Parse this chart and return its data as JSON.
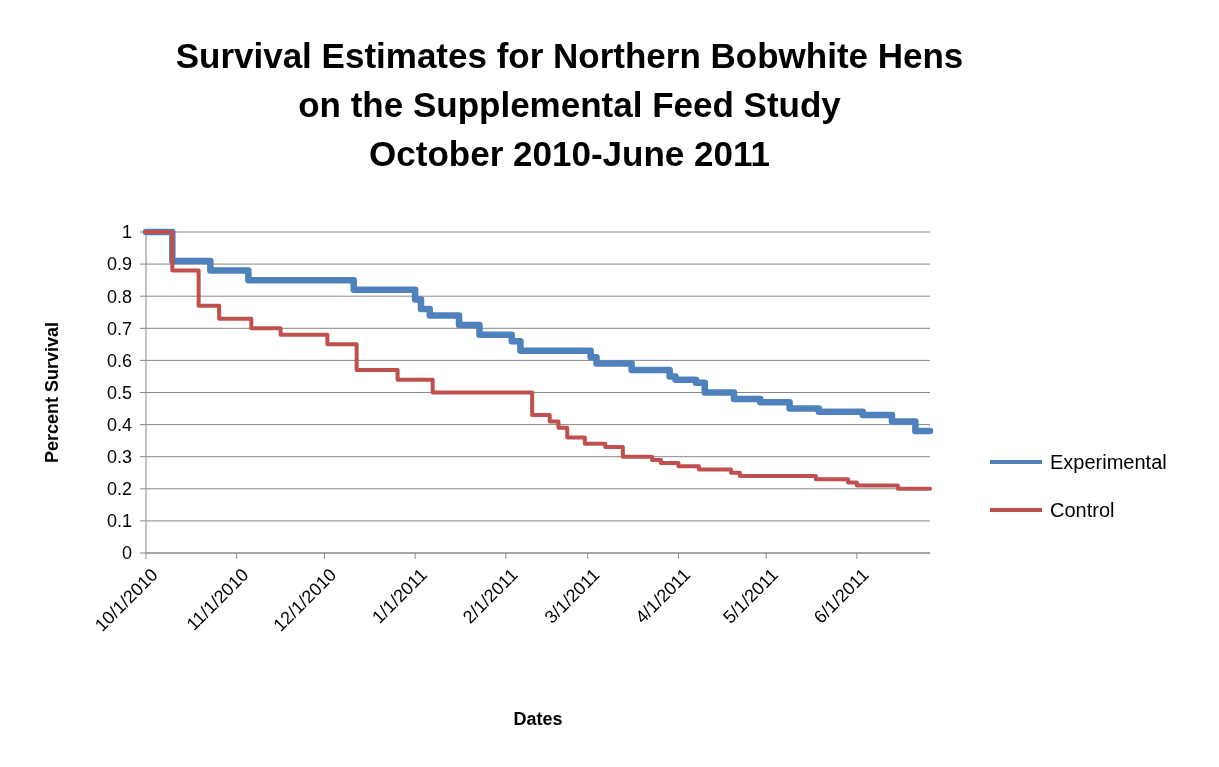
{
  "chart_data": {
    "type": "step",
    "title": "Survival Estimates for Northern Bobwhite Hens\non the Supplemental Feed Study",
    "subtitle": "October 2010-June 2011",
    "xlabel": "Dates",
    "ylabel": "Percent Survival",
    "xlim": [
      "2010-10-01",
      "2011-06-26"
    ],
    "xticks": [
      {
        "value": "2010-10-01",
        "label": "10/1/2010"
      },
      {
        "value": "2010-11-01",
        "label": "11/1/2010"
      },
      {
        "value": "2010-12-01",
        "label": "12/1/2010"
      },
      {
        "value": "2011-01-01",
        "label": "1/1/2011"
      },
      {
        "value": "2011-02-01",
        "label": "2/1/2011"
      },
      {
        "value": "2011-03-01",
        "label": "3/1/2011"
      },
      {
        "value": "2011-04-01",
        "label": "4/1/2011"
      },
      {
        "value": "2011-05-01",
        "label": "5/1/2011"
      },
      {
        "value": "2011-06-01",
        "label": "6/1/2011"
      }
    ],
    "ylim": [
      0,
      1
    ],
    "yticks": [
      0,
      0.1,
      0.2,
      0.3,
      0.4,
      0.5,
      0.6,
      0.7,
      0.8,
      0.9,
      1
    ],
    "grid": "y",
    "legend": "right",
    "marker": "none",
    "line_style": "solid",
    "series": [
      {
        "name": "Experimental",
        "color": "#4f81bd",
        "x": [
          "2010-10-01",
          "2010-10-10",
          "2010-10-23",
          "2010-11-05",
          "2010-12-11",
          "2011-01-01",
          "2011-01-03",
          "2011-01-06",
          "2011-01-16",
          "2011-01-23",
          "2011-02-03",
          "2011-02-06",
          "2011-03-02",
          "2011-03-04",
          "2011-03-16",
          "2011-03-29",
          "2011-03-31",
          "2011-04-07",
          "2011-04-10",
          "2011-04-20",
          "2011-04-29",
          "2011-05-09",
          "2011-05-19",
          "2011-06-03",
          "2011-06-13",
          "2011-06-21",
          "2011-06-26"
        ],
        "values": [
          1,
          0.91,
          0.88,
          0.85,
          0.82,
          0.79,
          0.76,
          0.74,
          0.71,
          0.68,
          0.66,
          0.63,
          0.61,
          0.59,
          0.57,
          0.55,
          0.54,
          0.53,
          0.5,
          0.48,
          0.47,
          0.45,
          0.44,
          0.43,
          0.41,
          0.38,
          0.38
        ]
      },
      {
        "name": "Control",
        "color": "#c0504d",
        "x": [
          "2010-10-01",
          "2010-10-10",
          "2010-10-19",
          "2010-10-26",
          "2010-11-06",
          "2010-11-16",
          "2010-12-02",
          "2010-12-12",
          "2010-12-26",
          "2011-01-07",
          "2011-02-10",
          "2011-02-16",
          "2011-02-19",
          "2011-02-22",
          "2011-02-28",
          "2011-03-07",
          "2011-03-13",
          "2011-03-23",
          "2011-03-26",
          "2011-04-01",
          "2011-04-08",
          "2011-04-19",
          "2011-04-22",
          "2011-05-18",
          "2011-05-29",
          "2011-06-01",
          "2011-06-15",
          "2011-06-26"
        ],
        "values": [
          1,
          0.88,
          0.77,
          0.73,
          0.7,
          0.68,
          0.65,
          0.57,
          0.54,
          0.5,
          0.43,
          0.41,
          0.39,
          0.36,
          0.34,
          0.33,
          0.3,
          0.29,
          0.28,
          0.27,
          0.26,
          0.25,
          0.24,
          0.23,
          0.22,
          0.21,
          0.2,
          0.2
        ]
      }
    ]
  }
}
